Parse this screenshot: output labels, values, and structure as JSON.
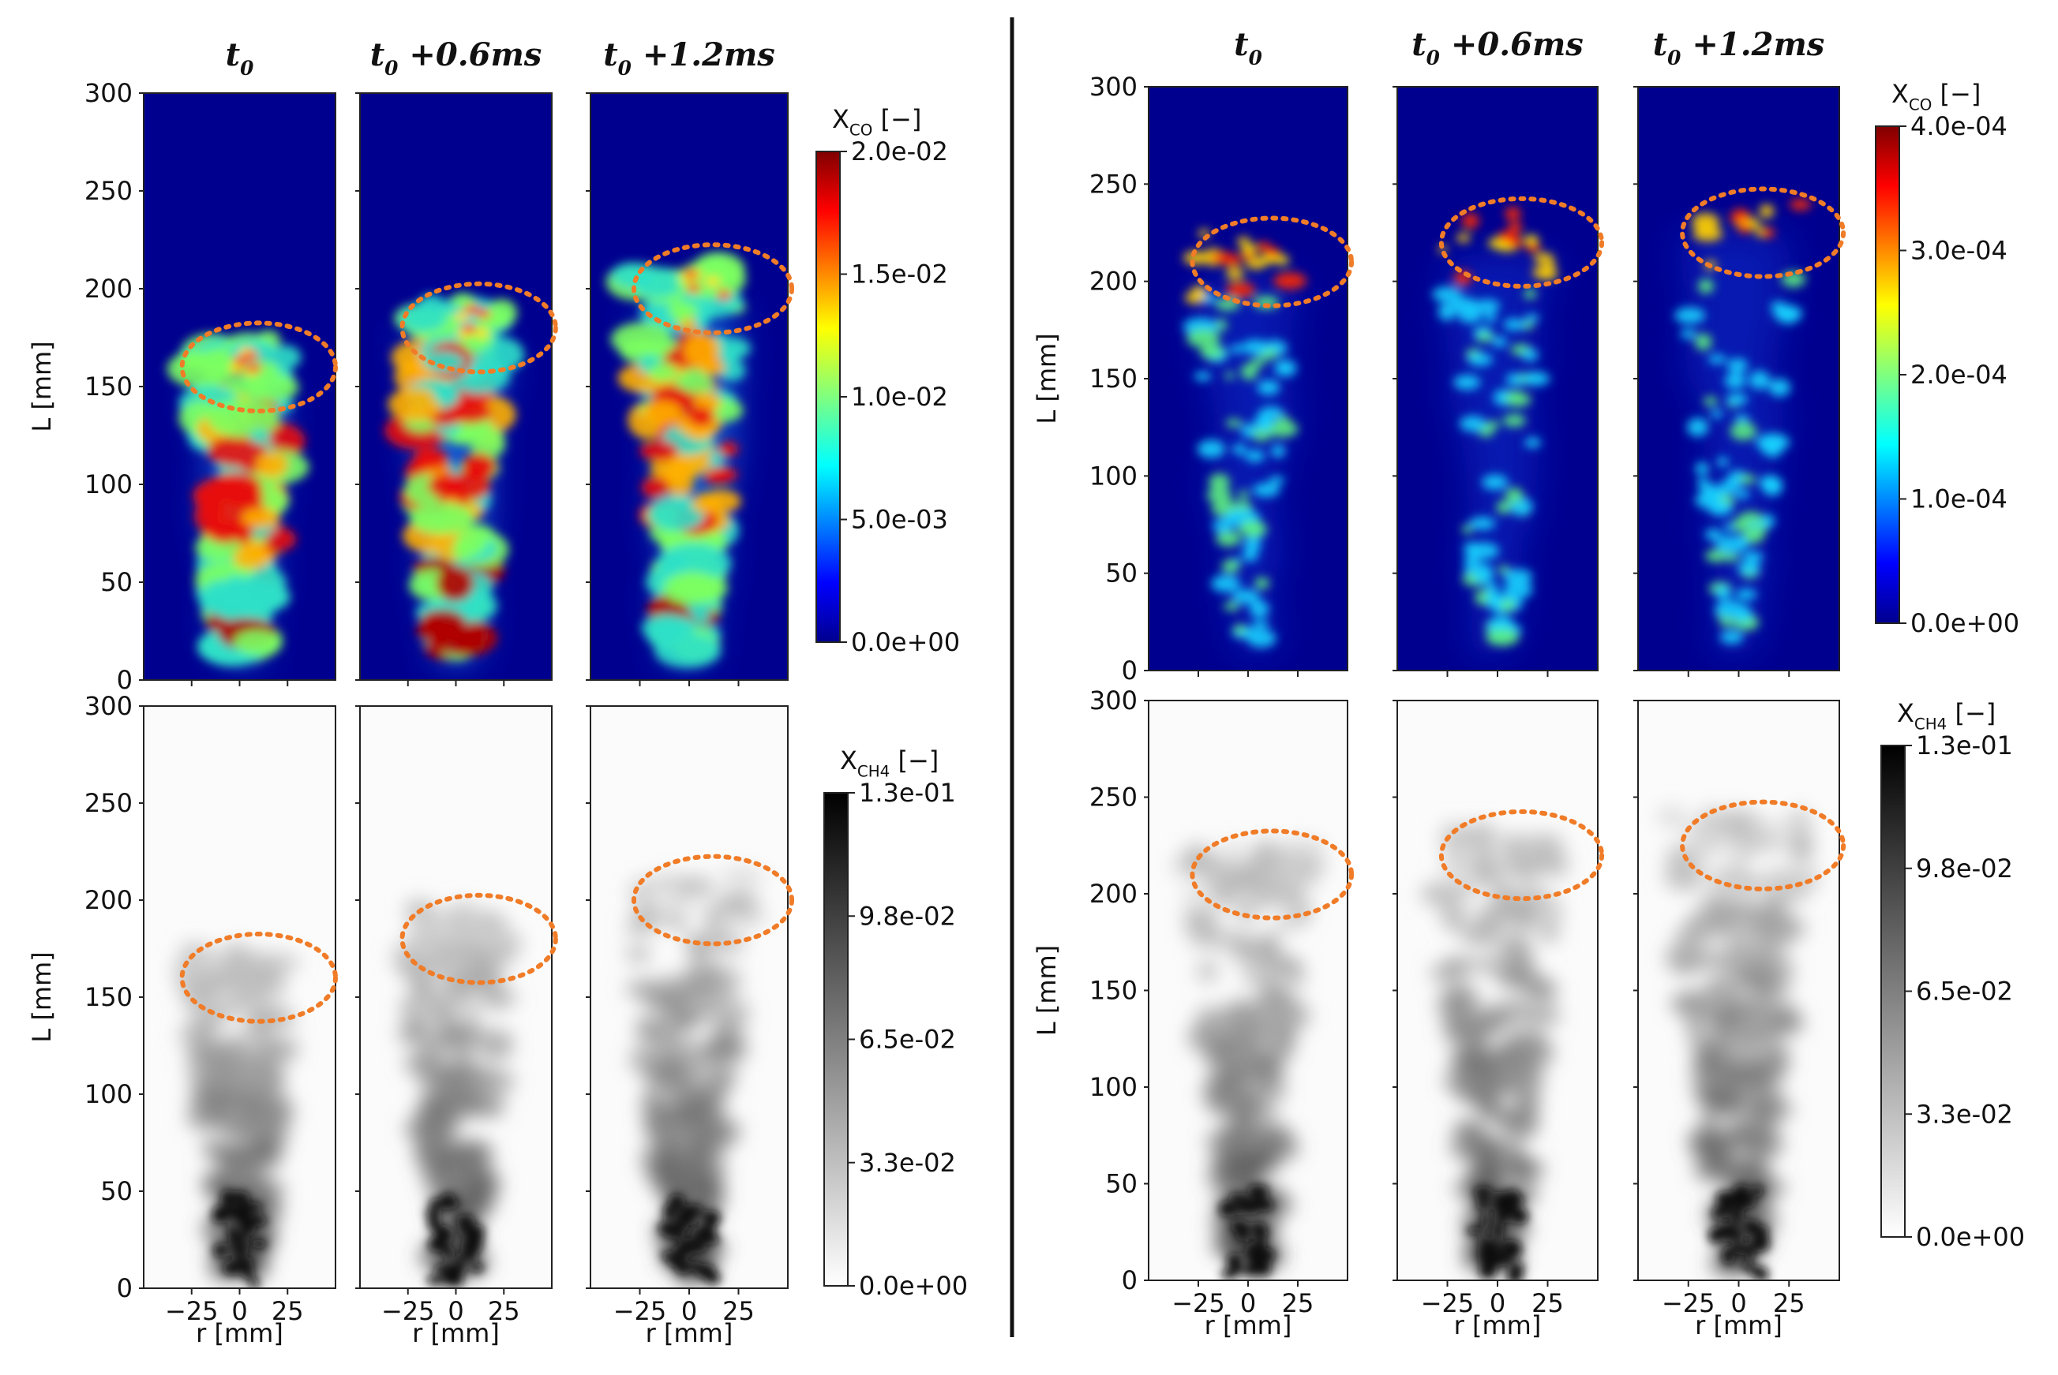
{
  "chart_data": {
    "type": "heatmap",
    "description_free": true,
    "time_labels": [
      "t0",
      "t0 +0.6ms",
      "t0 +1.2ms"
    ],
    "time_label_parts": [
      {
        "base": "t",
        "sub": "0",
        "rest": ""
      },
      {
        "base": "t",
        "sub": "0",
        "rest": " +0.6ms"
      },
      {
        "base": "t",
        "sub": "0",
        "rest": " +1.2ms"
      }
    ],
    "ylabel": "L [mm]",
    "xlabel": "r [mm]",
    "ylim": [
      0,
      300
    ],
    "yticks": [
      "0",
      "50",
      "100",
      "150",
      "200",
      "250",
      "300"
    ],
    "xticks": [
      "−25",
      "0",
      "25"
    ],
    "xtick_values": [
      -25,
      0,
      25
    ],
    "xlim": [
      -50,
      50
    ],
    "cases": [
      {
        "name": "left",
        "co_colorbar": {
          "label_base": "X",
          "label_sub": "CO",
          "label_rest": " [−]",
          "ticks": [
            "0.0e+00",
            "5.0e-03",
            "1.0e-02",
            "1.5e-02",
            "2.0e-02"
          ],
          "cmap": "jet"
        },
        "ch4_colorbar": {
          "label_base": "X",
          "label_sub": "CH4",
          "label_rest": " [−]",
          "ticks": [
            "0.0e+00",
            "3.3e-02",
            "6.5e-02",
            "9.8e-02",
            "1.3e-01"
          ],
          "cmap": "gray_r"
        },
        "highlight_L": [
          160,
          180,
          200
        ]
      },
      {
        "name": "right",
        "co_colorbar": {
          "label_base": "X",
          "label_sub": "CO",
          "label_rest": " [−]",
          "ticks": [
            "0.0e+00",
            "1.0e-04",
            "2.0e-04",
            "3.0e-04",
            "4.0e-04"
          ],
          "cmap": "jet"
        },
        "ch4_colorbar": {
          "label_base": "X",
          "label_sub": "CH4",
          "label_rest": " [−]",
          "ticks": [
            "0.0e+00",
            "3.3e-02",
            "6.5e-02",
            "9.8e-02",
            "1.3e-01"
          ],
          "cmap": "gray_r"
        },
        "highlight_L": [
          210,
          220,
          225
        ]
      }
    ]
  },
  "colors": {
    "field_background": "#00008f",
    "highlight_circle": "#f07c28",
    "divider": "#111111"
  }
}
